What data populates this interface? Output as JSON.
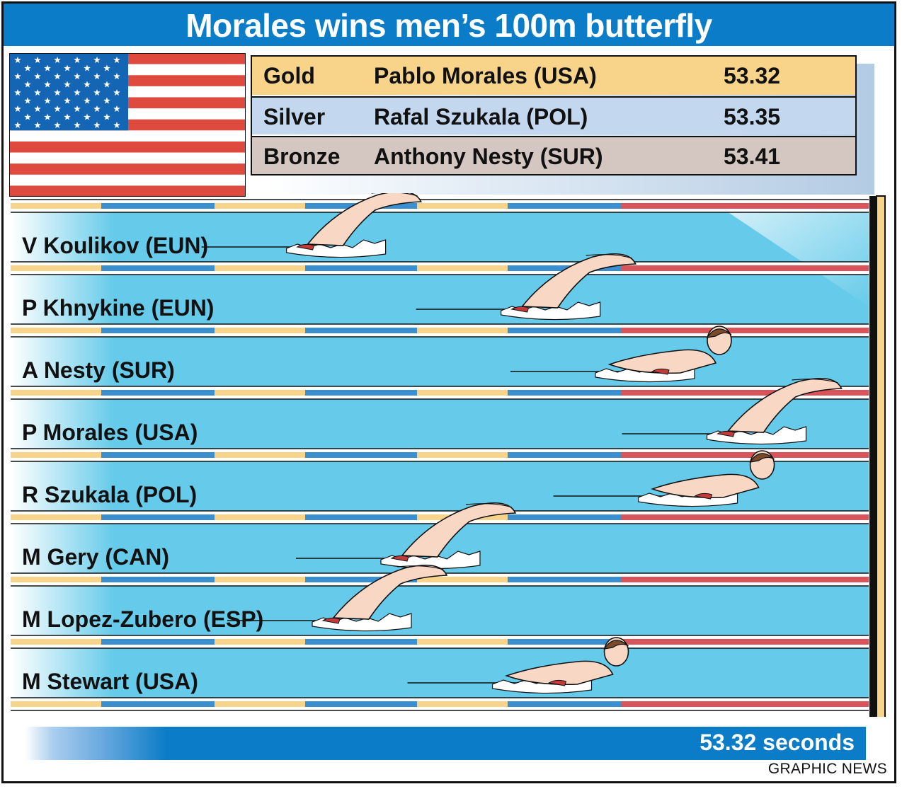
{
  "header": {
    "title": "Morales wins men’s 100m butterfly"
  },
  "flag": {
    "name": "USA flag",
    "icon": "us-flag-icon"
  },
  "results": [
    {
      "medal": "Gold",
      "name": "Pablo Morales (USA)",
      "time": "53.32",
      "color": "#f7d48a"
    },
    {
      "medal": "Silver",
      "name": "Rafal Szukala (POL)",
      "time": "53.35",
      "color": "#c3d7ef"
    },
    {
      "medal": "Bronze",
      "name": "Anthony Nesty (SUR)",
      "time": "53.41",
      "color": "#d4c7c1"
    }
  ],
  "lanes": [
    {
      "swimmer": "V Koulikov (EUN)",
      "stroke": "butterfly",
      "progress": 0.47
    },
    {
      "swimmer": "P Khnykine (EUN)",
      "stroke": "butterfly",
      "progress": 0.72
    },
    {
      "swimmer": "A Nesty (SUR)",
      "stroke": "head-up",
      "progress": 0.83
    },
    {
      "swimmer": "P Morales (USA)",
      "stroke": "butterfly",
      "progress": 0.96
    },
    {
      "swimmer": "R Szukala (POL)",
      "stroke": "head-up",
      "progress": 0.88
    },
    {
      "swimmer": "M Gery (CAN)",
      "stroke": "butterfly",
      "progress": 0.58
    },
    {
      "swimmer": "M Lopez-Zubero (ESP)",
      "stroke": "butterfly",
      "progress": 0.5
    },
    {
      "swimmer": "M Stewart (USA)",
      "stroke": "head-up",
      "progress": 0.71
    }
  ],
  "footer": {
    "time_label": "53.32 seconds",
    "credit": "GRAPHIC NEWS"
  },
  "colors": {
    "header_blue": "#0b7cc7",
    "water": "#66cbea",
    "rope_yellow": "#f7d48a",
    "rope_blue": "#3a8fd1",
    "rope_red": "#d9535a",
    "skin": "#f8d7c4",
    "flag_red": "#de4b3e",
    "flag_blue": "#1565b5"
  }
}
